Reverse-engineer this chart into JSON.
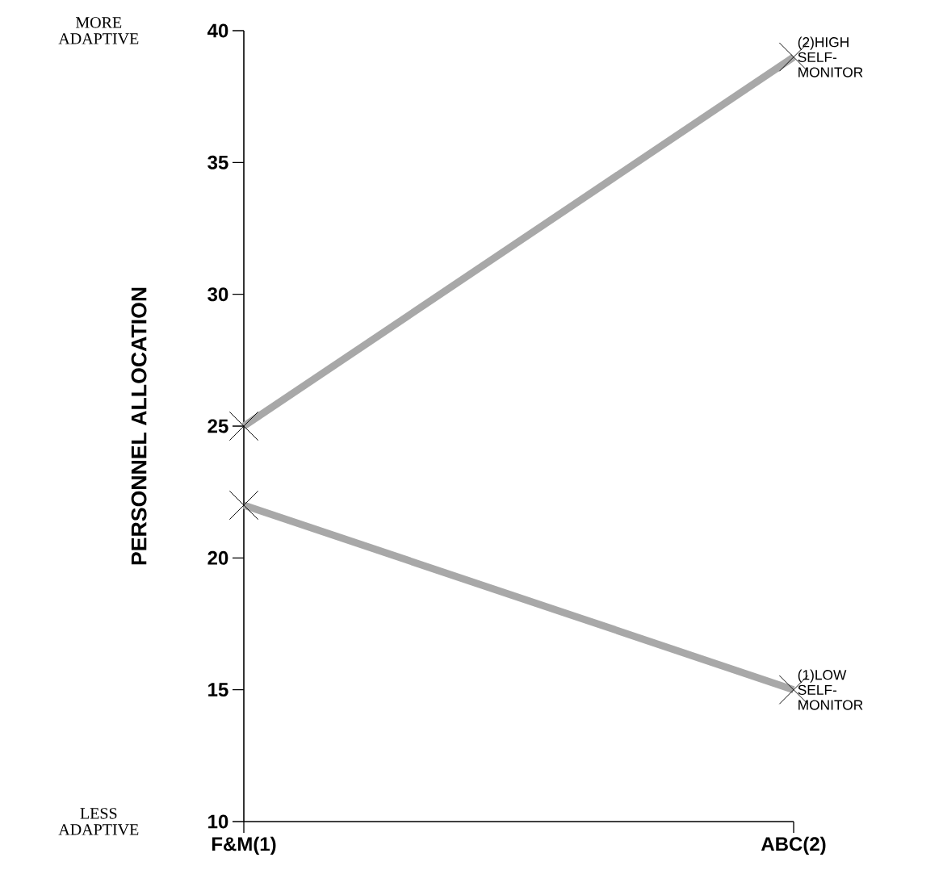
{
  "chart_data": {
    "type": "line",
    "categories": [
      "F&M(1)",
      "ABC(2)"
    ],
    "ylabel": "PERSONNEL ALLOCATION",
    "annotations": [
      "MORE ADAPTIVE",
      "LESS ADAPTIVE"
    ],
    "series": [
      {
        "name": "(2)HIGH SELF-MONITOR",
        "color": "#a8a8a8",
        "values": [
          25,
          39
        ]
      },
      {
        "name": "(1)LOW SELF- MONITOR",
        "color": "#a8a8a8",
        "values": [
          22,
          15
        ]
      }
    ],
    "ylim": [
      10,
      40
    ],
    "yticks": [
      10,
      15,
      20,
      25,
      30,
      35,
      40
    ],
    "marker": "cross",
    "line_style": "solid",
    "grid": false
  }
}
